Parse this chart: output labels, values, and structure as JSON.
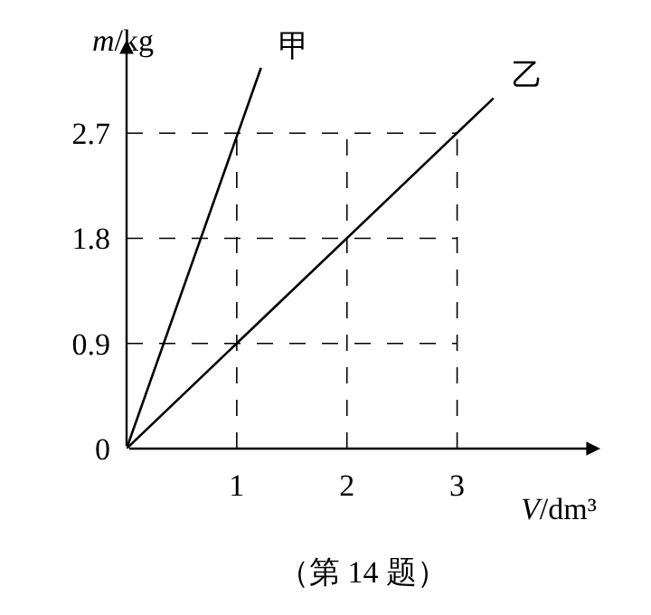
{
  "chart_data": {
    "type": "line",
    "xlabel": "V/dm³",
    "ylabel": "m/kg",
    "series": [
      {
        "name": "甲",
        "color": "#000000",
        "x": [
          0,
          1.22
        ],
        "values": [
          0,
          3.26
        ]
      },
      {
        "name": "乙",
        "color": "#000000",
        "x": [
          0,
          3.33
        ],
        "values": [
          0,
          3.0
        ]
      }
    ],
    "xlim": [
      0,
      4.3
    ],
    "ylim": [
      0,
      3.5
    ],
    "xticks": [
      1,
      2,
      3
    ],
    "yticks": [
      0,
      0.9,
      1.8,
      2.7
    ],
    "ref_lines": [
      {
        "axis": "y",
        "value": 0.9,
        "line_style": "dashed"
      },
      {
        "axis": "y",
        "value": 1.8,
        "line_style": "dashed"
      },
      {
        "axis": "y",
        "value": 2.7,
        "line_style": "dashed"
      },
      {
        "axis": "x",
        "value": 1,
        "line_style": "dashed"
      },
      {
        "axis": "x",
        "value": 2,
        "line_style": "dashed"
      },
      {
        "axis": "x",
        "value": 3,
        "line_style": "dashed"
      }
    ],
    "line_style": "solid",
    "marker": "none",
    "legend": false,
    "annotations": [
      "（第 14 题）"
    ]
  }
}
